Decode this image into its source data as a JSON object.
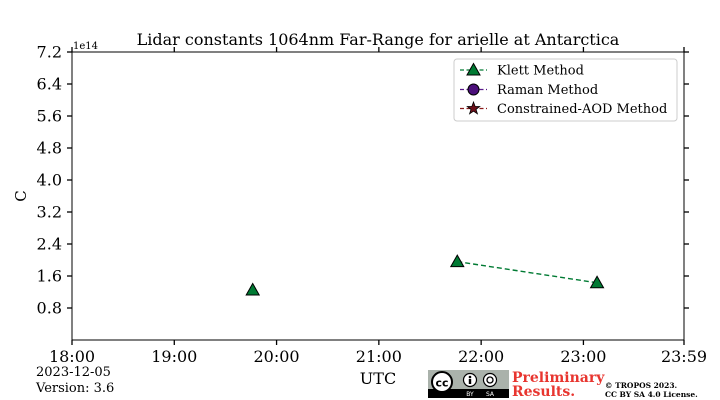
{
  "chart_data": {
    "type": "scatter",
    "title": "Lidar constants 1064nm Far-Range for arielle at Antarctica",
    "xlabel": "UTC",
    "ylabel": "C",
    "y_exponent_label": "1e14",
    "x_ticks": [
      "18:00",
      "19:00",
      "20:00",
      "21:00",
      "22:00",
      "23:00",
      "23:59"
    ],
    "y_ticks": [
      "7.2",
      "6.4",
      "5.6",
      "4.8",
      "4.0",
      "3.2",
      "2.4",
      "1.6",
      "0.8"
    ],
    "x_range": [
      "18:00",
      "23:59"
    ],
    "y_range": [
      0.0,
      7.2
    ],
    "grid": false,
    "legend_position": "top-right",
    "series": [
      {
        "name": "Klett Method",
        "marker": "triangle",
        "color": "#007a33",
        "line_style": "dashed",
        "points": [
          {
            "x": "19:46",
            "y": 1.25,
            "connected": false
          },
          {
            "x": "21:46",
            "y": 1.96,
            "connected": true
          },
          {
            "x": "23:08",
            "y": 1.43,
            "connected": true
          }
        ]
      },
      {
        "name": "Raman Method",
        "marker": "circle",
        "color": "#5a1a8a",
        "line_style": "dashed",
        "points": []
      },
      {
        "name": "Constrained-AOD Method",
        "marker": "star",
        "color": "#8b1a1a",
        "line_style": "dashed",
        "points": []
      }
    ]
  },
  "footer": {
    "date": "2023-12-05",
    "version": "Version: 3.6",
    "preliminary_line1": "Preliminary",
    "preliminary_line2": "Results.",
    "copyright_line1": "© TROPOS 2023.",
    "copyright_line2": "CC BY SA 4.0 License.",
    "cc_badge": "cc",
    "cc_by": "BY",
    "cc_sa": "SA",
    "colors": {
      "preliminary": "#e8352f"
    }
  }
}
